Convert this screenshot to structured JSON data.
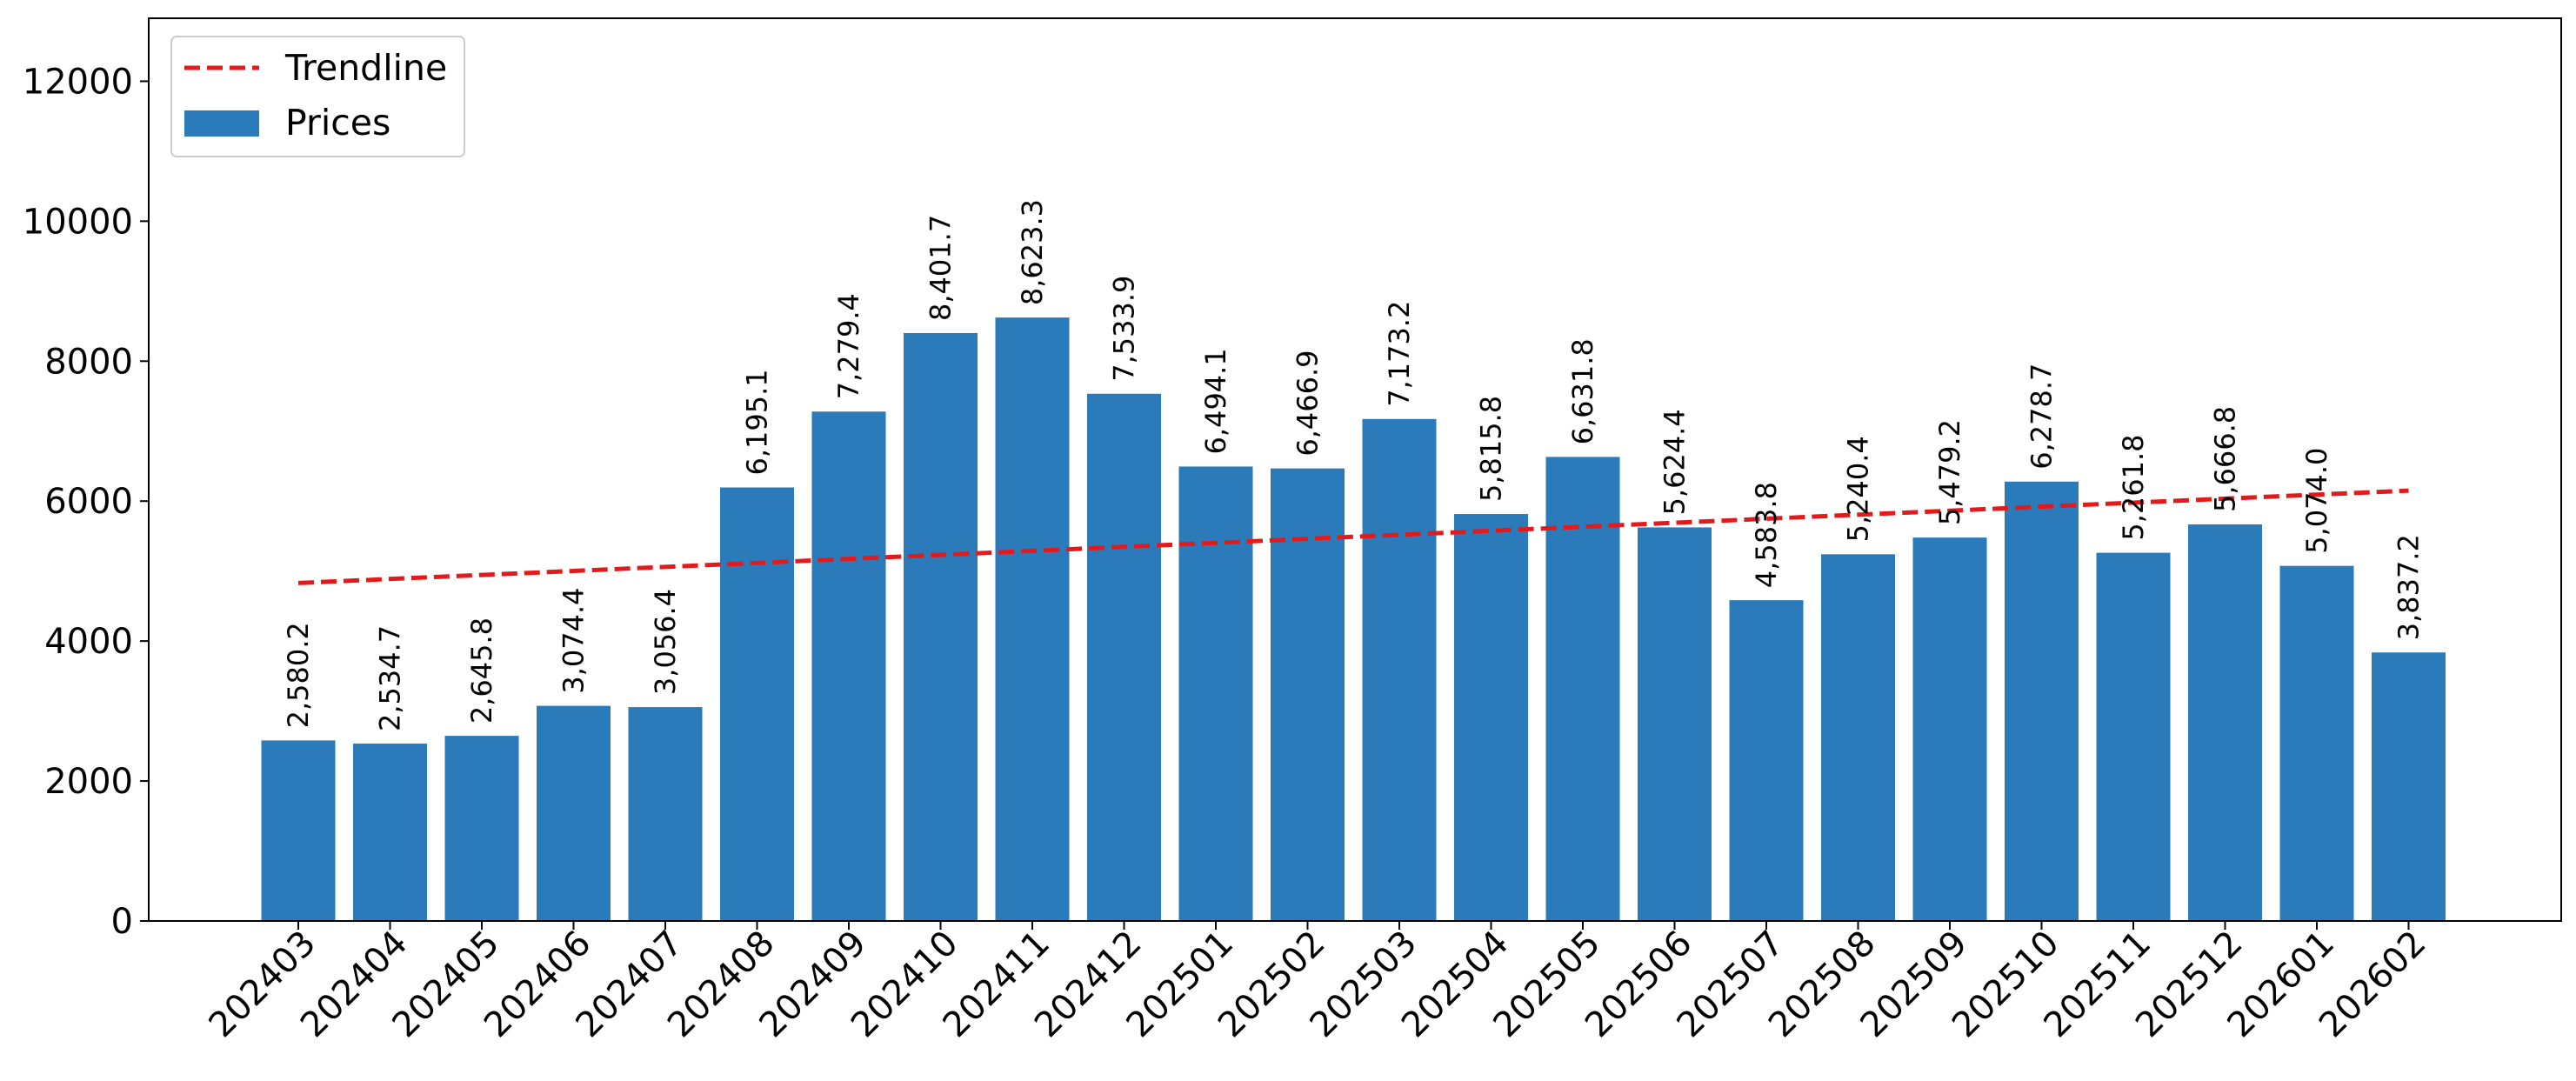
{
  "chart_data": {
    "type": "bar",
    "categories": [
      "202403",
      "202404",
      "202405",
      "202406",
      "202407",
      "202408",
      "202409",
      "202410",
      "202411",
      "202412",
      "202501",
      "202502",
      "202503",
      "202504",
      "202505",
      "202506",
      "202507",
      "202508",
      "202509",
      "202510",
      "202511",
      "202512",
      "202601",
      "202602"
    ],
    "series": [
      {
        "name": "Prices",
        "type": "bar",
        "color": "#2b7bba",
        "values": [
          2580.2,
          2534.7,
          2645.8,
          3074.4,
          3056.4,
          6195.1,
          7279.4,
          8401.7,
          8623.3,
          7533.9,
          6494.1,
          6466.9,
          7173.2,
          5815.8,
          6631.8,
          5624.4,
          4583.8,
          5240.4,
          5479.2,
          6278.7,
          5261.8,
          5666.8,
          5074.0,
          3837.2
        ],
        "labels": [
          "2,580.2",
          "2,534.7",
          "2,645.8",
          "3,074.4",
          "3,056.4",
          "6,195.1",
          "7,279.4",
          "8,401.7",
          "8,623.3",
          "7,533.9",
          "6,494.1",
          "6,466.9",
          "7,173.2",
          "5,815.8",
          "6,631.8",
          "5,624.4",
          "4,583.8",
          "5,240.4",
          "5,479.2",
          "6,278.7",
          "5,261.8",
          "5,666.8",
          "5,074.0",
          "3,837.2"
        ]
      },
      {
        "name": "Trendline",
        "type": "line",
        "style": "dashed",
        "color": "#e31a1c",
        "start": 4830,
        "end": 6150
      }
    ],
    "title": "",
    "xlabel": "",
    "ylabel": "",
    "ylim": [
      0,
      12900
    ],
    "yticks": [
      "0",
      "2000",
      "4000",
      "6000",
      "8000",
      "10000",
      "12000"
    ],
    "ytick_values": [
      0,
      2000,
      4000,
      6000,
      8000,
      10000,
      12000
    ],
    "grid": false,
    "legend_position": "top-left",
    "legend": [
      "Trendline",
      "Prices"
    ]
  }
}
